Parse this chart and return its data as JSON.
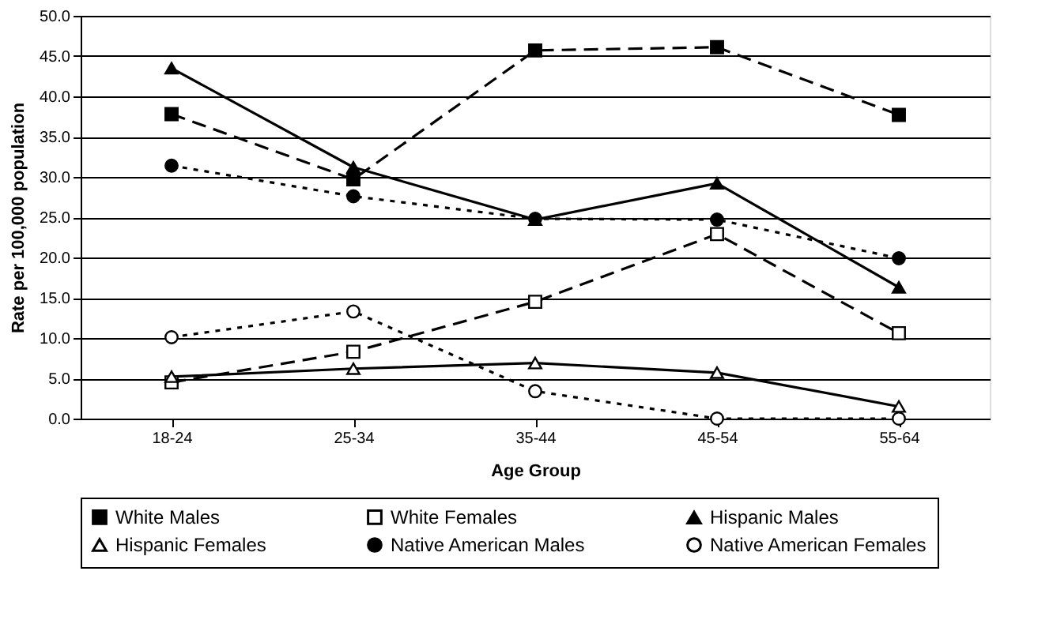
{
  "chart_data": {
    "type": "line",
    "xlabel": "Age Group",
    "ylabel": "Rate per 100,000 population",
    "categories": [
      "18-24",
      "25-34",
      "35-44",
      "45-54",
      "55-64"
    ],
    "ylim": [
      0,
      50
    ],
    "yticks": [
      {
        "value": 0,
        "label": "0.0"
      },
      {
        "value": 5,
        "label": "5.0"
      },
      {
        "value": 10,
        "label": "10.0"
      },
      {
        "value": 15,
        "label": "15.0"
      },
      {
        "value": 20,
        "label": "20.0"
      },
      {
        "value": 25,
        "label": "25.0"
      },
      {
        "value": 30,
        "label": "30.0"
      },
      {
        "value": 35,
        "label": "35.0"
      },
      {
        "value": 40,
        "label": "40.0"
      },
      {
        "value": 45,
        "label": "45.0"
      },
      {
        "value": 50,
        "label": "50.0"
      }
    ],
    "grid": "y",
    "legend": "bottom",
    "series": [
      {
        "name": "White Males",
        "color": "#000000",
        "marker": "square",
        "line_style": "dashed",
        "values": [
          37.8,
          29.7,
          45.7,
          46.1,
          37.7
        ]
      },
      {
        "name": "White Females",
        "color": "#000000",
        "marker": "square",
        "line_style": "dashed",
        "values": [
          4.5,
          8.3,
          14.5,
          22.9,
          10.6
        ]
      },
      {
        "name": "Hispanic Males",
        "color": "#000000",
        "marker": "triangle",
        "line_style": "solid",
        "values": [
          43.5,
          31.2,
          24.7,
          29.2,
          16.3
        ]
      },
      {
        "name": "Hispanic Females",
        "color": "#000000",
        "marker": "triangle",
        "line_style": "solid",
        "values": [
          5.2,
          6.2,
          6.9,
          5.7,
          1.5
        ]
      },
      {
        "name": "Native American Males",
        "color": "#000000",
        "marker": "circle",
        "line_style": "dotted",
        "values": [
          31.4,
          27.6,
          24.8,
          24.7,
          19.9
        ]
      },
      {
        "name": "Native American Females",
        "color": "#000000",
        "marker": "circle",
        "line_style": "dotted",
        "values": [
          10.1,
          13.3,
          3.4,
          0,
          0
        ]
      }
    ]
  }
}
